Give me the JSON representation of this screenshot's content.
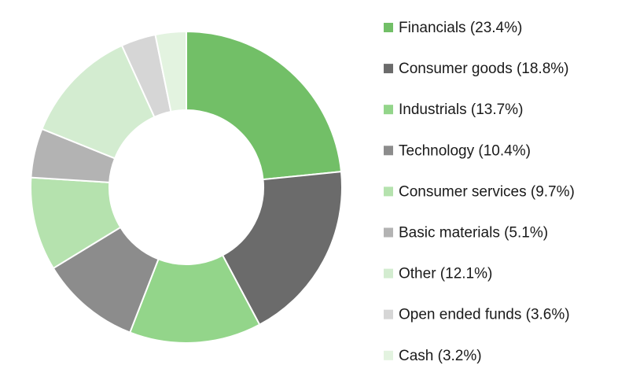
{
  "chart_data": {
    "type": "pie",
    "categories": [
      "Financials (23.4%)",
      "Consumer goods (18.8%)",
      "Industrials (13.7%)",
      "Technology (10.4%)",
      "Consumer services (9.7%)",
      "Basic materials (5.1%)",
      "Other (12.1%)",
      "Open ended funds (3.6%)",
      "Cash (3.2%)"
    ],
    "values": [
      23.4,
      18.8,
      13.7,
      10.4,
      9.7,
      5.1,
      12.1,
      3.6,
      3.2
    ],
    "colors": [
      "#72bf67",
      "#6b6b6b",
      "#93d58a",
      "#8c8c8c",
      "#b5e2ae",
      "#b3b3b3",
      "#d3ecd0",
      "#d6d6d6",
      "#e3f3e0"
    ],
    "donut": true,
    "legend": "right"
  }
}
